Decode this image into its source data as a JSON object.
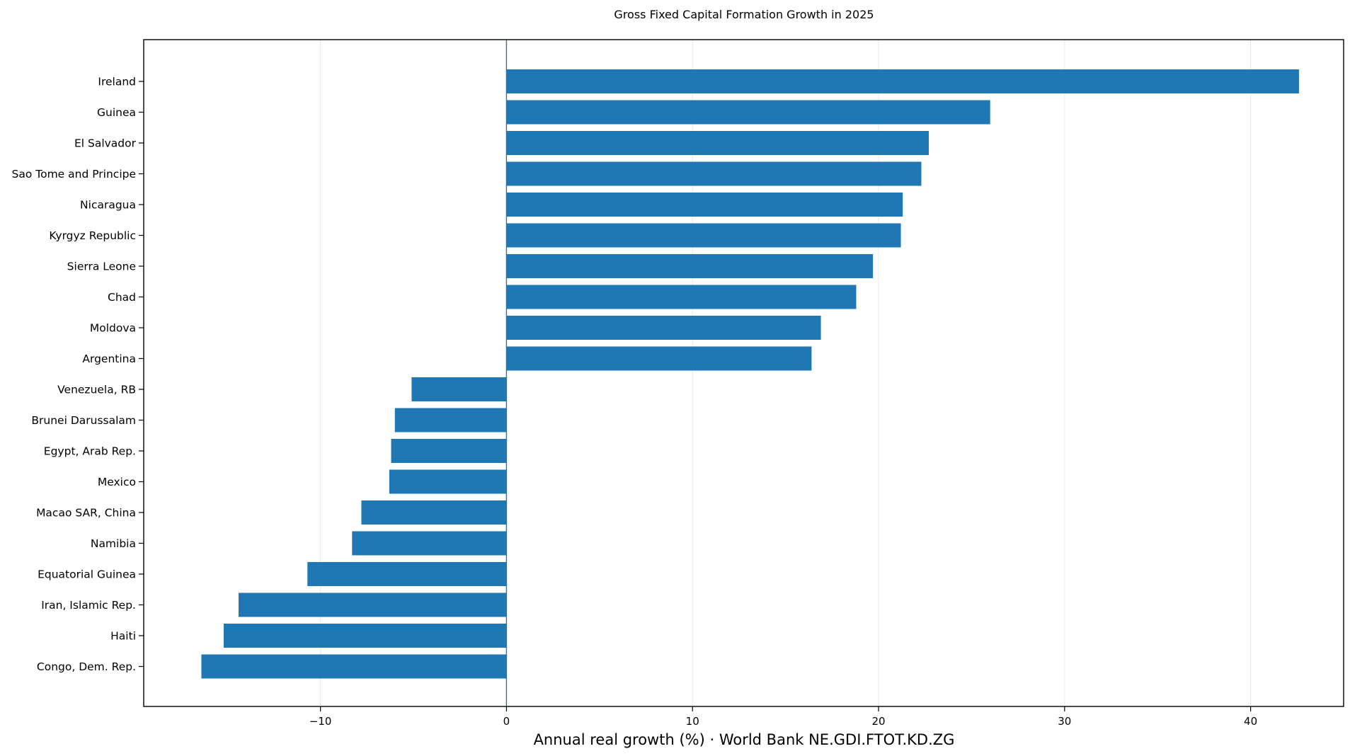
{
  "chart_data": {
    "type": "bar",
    "orientation": "horizontal",
    "title": "Gross Fixed Capital Formation Growth in 2025",
    "xlabel": "Annual real growth (%) · World Bank NE.GDI.FTOT.KD.ZG",
    "ylabel": "",
    "xlim": [
      -19.5,
      45.0
    ],
    "xticks": [
      -10,
      0,
      10,
      20,
      30,
      40
    ],
    "xtick_labels": [
      "−10",
      "0",
      "10",
      "20",
      "30",
      "40"
    ],
    "grid": "vertical",
    "bar_color": "#1f77b4",
    "categories": [
      "Ireland",
      "Guinea",
      "El Salvador",
      "Sao Tome and Principe",
      "Nicaragua",
      "Kyrgyz Republic",
      "Sierra Leone",
      "Chad",
      "Moldova",
      "Argentina",
      "Venezuela, RB",
      "Brunei Darussalam",
      "Egypt, Arab Rep.",
      "Mexico",
      "Macao SAR, China",
      "Namibia",
      "Equatorial Guinea",
      "Iran, Islamic Rep.",
      "Haiti",
      "Congo, Dem. Rep."
    ],
    "values": [
      42.6,
      26.0,
      22.7,
      22.3,
      21.3,
      21.2,
      19.7,
      18.8,
      16.9,
      16.4,
      -5.1,
      -6.0,
      -6.2,
      -6.3,
      -7.8,
      -8.3,
      -10.7,
      -14.4,
      -15.2,
      -16.4
    ]
  }
}
